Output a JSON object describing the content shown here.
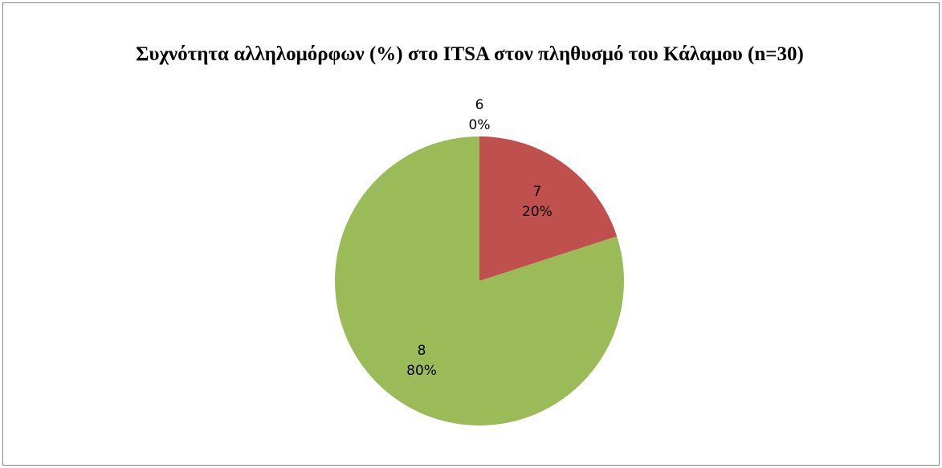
{
  "chart_data": {
    "type": "pie",
    "title": "Συχνότητα αλληλομόρφων (%) στο ITSA στον πληθυσμό του Κάλαμου (n=30)",
    "categories": [
      "6",
      "7",
      "8"
    ],
    "values": [
      0,
      20,
      80
    ],
    "value_labels": [
      "0%",
      "20%",
      "80%"
    ],
    "colors": [
      "#4f81bd",
      "#c0504d",
      "#9bbb59"
    ]
  }
}
